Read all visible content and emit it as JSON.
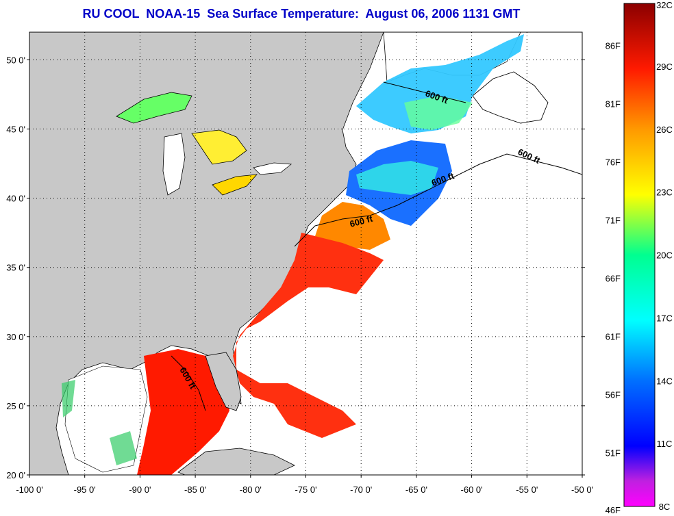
{
  "title": "RU COOL  NOAA-15  Sea Surface Temperature:  August 06, 2006 1131 GMT",
  "map": {
    "lon_range": [
      -100,
      -50
    ],
    "lat_range": [
      20,
      52
    ],
    "x_ticks": [
      {
        "lon": -100,
        "label": "-100 0'"
      },
      {
        "lon": -95,
        "label": "-95 0'"
      },
      {
        "lon": -90,
        "label": "-90 0'"
      },
      {
        "lon": -85,
        "label": "-85 0'"
      },
      {
        "lon": -80,
        "label": "-80 0'"
      },
      {
        "lon": -75,
        "label": "-75 0'"
      },
      {
        "lon": -70,
        "label": "-70 0'"
      },
      {
        "lon": -65,
        "label": "-65 0'"
      },
      {
        "lon": -60,
        "label": "-60 0'"
      },
      {
        "lon": -55,
        "label": "-55 0'"
      },
      {
        "lon": -50,
        "label": "-50 0'"
      }
    ],
    "y_ticks": [
      {
        "lat": 20,
        "label": "20 0'"
      },
      {
        "lat": 25,
        "label": "25 0'"
      },
      {
        "lat": 30,
        "label": "30 0'"
      },
      {
        "lat": 35,
        "label": "35 0'"
      },
      {
        "lat": 40,
        "label": "40 0'"
      },
      {
        "lat": 45,
        "label": "45 0'"
      },
      {
        "lat": 50,
        "label": "50 0'"
      }
    ],
    "contour_label": "600 ft",
    "land_color": "#c8c8c8",
    "nodata_color": "#ffffff"
  },
  "colorbar": {
    "min_c": 8,
    "max_c": 32,
    "celsius_labels": [
      "32C",
      "29C",
      "26C",
      "23C",
      "20C",
      "17C",
      "14C",
      "11C",
      "8C"
    ],
    "fahrenheit_labels": [
      "86F",
      "81F",
      "76F",
      "71F",
      "66F",
      "61F",
      "56F",
      "51F",
      "46F"
    ],
    "colors": [
      "#ff00ff",
      "#9b30c8",
      "#0000ff",
      "#0080ff",
      "#00ffff",
      "#00ff80",
      "#ffff00",
      "#ff9900",
      "#ff0000",
      "#8b0000"
    ]
  }
}
